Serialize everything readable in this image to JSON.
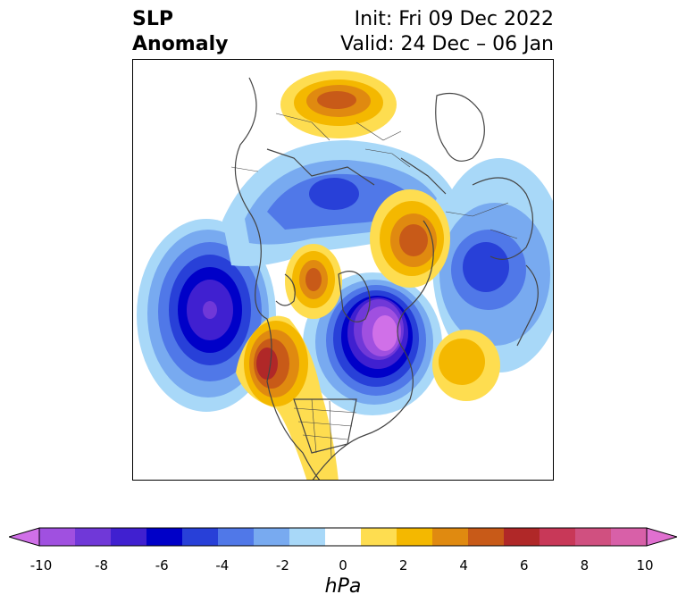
{
  "title": {
    "left_line1": "SLP",
    "left_line2": "Anomaly",
    "right_line1": "Init: Fri 09 Dec 2022",
    "right_line2": "Valid: 24 Dec – 06 Jan"
  },
  "colorbar": {
    "unit": "hPa",
    "ticks": [
      "-10",
      "-8",
      "-6",
      "-4",
      "-2",
      "0",
      "2",
      "4",
      "6",
      "8",
      "10"
    ],
    "colors": [
      "#d070e8",
      "#a050e0",
      "#7038d8",
      "#4020d0",
      "#0000c8",
      "#2840d8",
      "#5078e8",
      "#78aaf0",
      "#a8d8f8",
      "#ffffff",
      "#fedd50",
      "#f4b800",
      "#e08a10",
      "#c85a18",
      "#b02828",
      "#c83858",
      "#d05080",
      "#d860a8",
      "#e070d0"
    ],
    "min": -10,
    "max": 10,
    "extend": "both"
  },
  "colors": {
    "coastline": "#444444",
    "frame": "#000000"
  }
}
